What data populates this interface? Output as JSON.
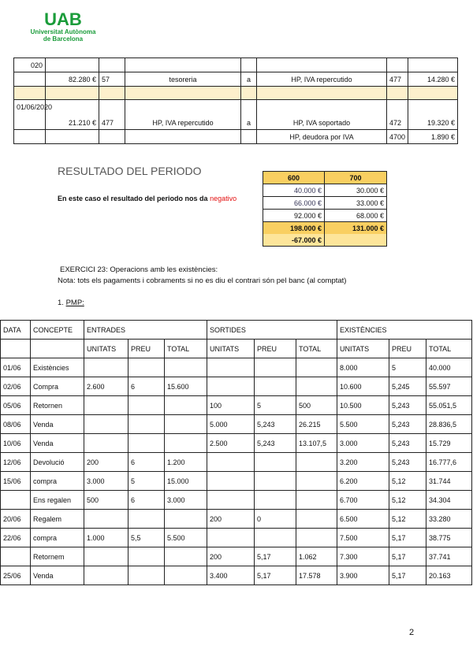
{
  "logo": {
    "name": "UAB",
    "line1": "Universitat Autònoma",
    "line2": "de Barcelona",
    "color": "#1a9c3a"
  },
  "journal": {
    "rows": [
      [
        "020",
        "",
        "",
        "",
        "",
        "",
        "",
        ""
      ],
      [
        "",
        "82.280 €",
        "57",
        "tesoreria",
        "a",
        "HP, IVA repercutido",
        "477",
        "14.280 €"
      ],
      [
        "",
        "",
        "",
        "",
        "",
        "",
        "",
        ""
      ],
      [
        "01/06/2020",
        "21.210 €",
        "477",
        "HP, IVA repercutido",
        "a",
        "HP, IVA soportado",
        "472",
        "19.320 €"
      ],
      [
        "",
        "",
        "",
        "",
        "",
        "HP, deudora por IVA",
        "4700",
        "1.890 €"
      ]
    ]
  },
  "result": {
    "title": "RESULTADO DEL PERIODO",
    "text": "En este caso el resultado del periodo nos da ",
    "highlight": "negativo",
    "highlight_color": "#e31010",
    "headers": [
      "600",
      "700"
    ],
    "rows": [
      [
        "40.000 €",
        "30.000 €"
      ],
      [
        "66.000 €",
        "33.000 €"
      ],
      [
        "92.000 €",
        "68.000 €"
      ]
    ],
    "totals": [
      "198.000 €",
      "131.000 €"
    ],
    "difference": "-67.000 €"
  },
  "exercise": {
    "title": "EXERCICI 23: Operacions amb les existències:",
    "note": "Nota: tots els pagaments i cobraments si no es diu el contrari són pel banc (al comptat)",
    "section_num": "1. ",
    "section": "PMP:"
  },
  "pmp": {
    "groups": [
      "DATA",
      "CONCEPTE",
      "ENTRADES",
      "SORTIDES",
      "EXISTÈNCIES"
    ],
    "subheaders": [
      "UNITATS",
      "PREU",
      "TOTAL",
      "UNITATS",
      "PREU",
      "TOTAL",
      "UNITATS",
      "PREU",
      "TOTAL"
    ],
    "rows": [
      [
        "01/06",
        "Existències",
        "",
        "",
        "",
        "",
        "",
        "",
        "8.000",
        "5",
        "40.000"
      ],
      [
        "02/06",
        "Compra",
        "2.600",
        "6",
        "15.600",
        "",
        "",
        "",
        "10.600",
        "5,245",
        "55.597"
      ],
      [
        "05/06",
        "Retornen",
        "",
        "",
        "",
        "100",
        "5",
        "500",
        "10.500",
        "5,243",
        "55.051,5"
      ],
      [
        "08/06",
        "Venda",
        "",
        "",
        "",
        "5.000",
        "5,243",
        "26.215",
        "5.500",
        "5,243",
        "28.836,5"
      ],
      [
        "10/06",
        "Venda",
        "",
        "",
        "",
        "2.500",
        "5,243",
        "13.107,5",
        "3.000",
        "5,243",
        "15.729"
      ],
      [
        "12/06",
        "Devolució",
        "200",
        "6",
        "1.200",
        "",
        "",
        "",
        "3.200",
        "5,243",
        "16.777,6"
      ],
      [
        "15/06",
        "compra",
        "3.000",
        "5",
        "15.000",
        "",
        "",
        "",
        "6.200",
        "5,12",
        "31.744"
      ],
      [
        "",
        "Ens regalen",
        "500",
        "6",
        "3.000",
        "",
        "",
        "",
        "6.700",
        "5,12",
        "34.304"
      ],
      [
        "20/06",
        "Regalem",
        "",
        "",
        "",
        "200",
        "0",
        "",
        "6.500",
        "5,12",
        "33.280"
      ],
      [
        "22/06",
        "compra",
        "1.000",
        "5,5",
        "5.500",
        "",
        "",
        "",
        "7.500",
        "5,17",
        "38.775"
      ],
      [
        "",
        "Retornem",
        "",
        "",
        "",
        "200",
        "5,17",
        "1.062",
        "7.300",
        "5,17",
        "37.741"
      ],
      [
        "25/06",
        "Venda",
        "",
        "",
        "",
        "3.400",
        "5,17",
        "17.578",
        "3.900",
        "5,17",
        "20.163"
      ]
    ]
  },
  "page_number": "2"
}
